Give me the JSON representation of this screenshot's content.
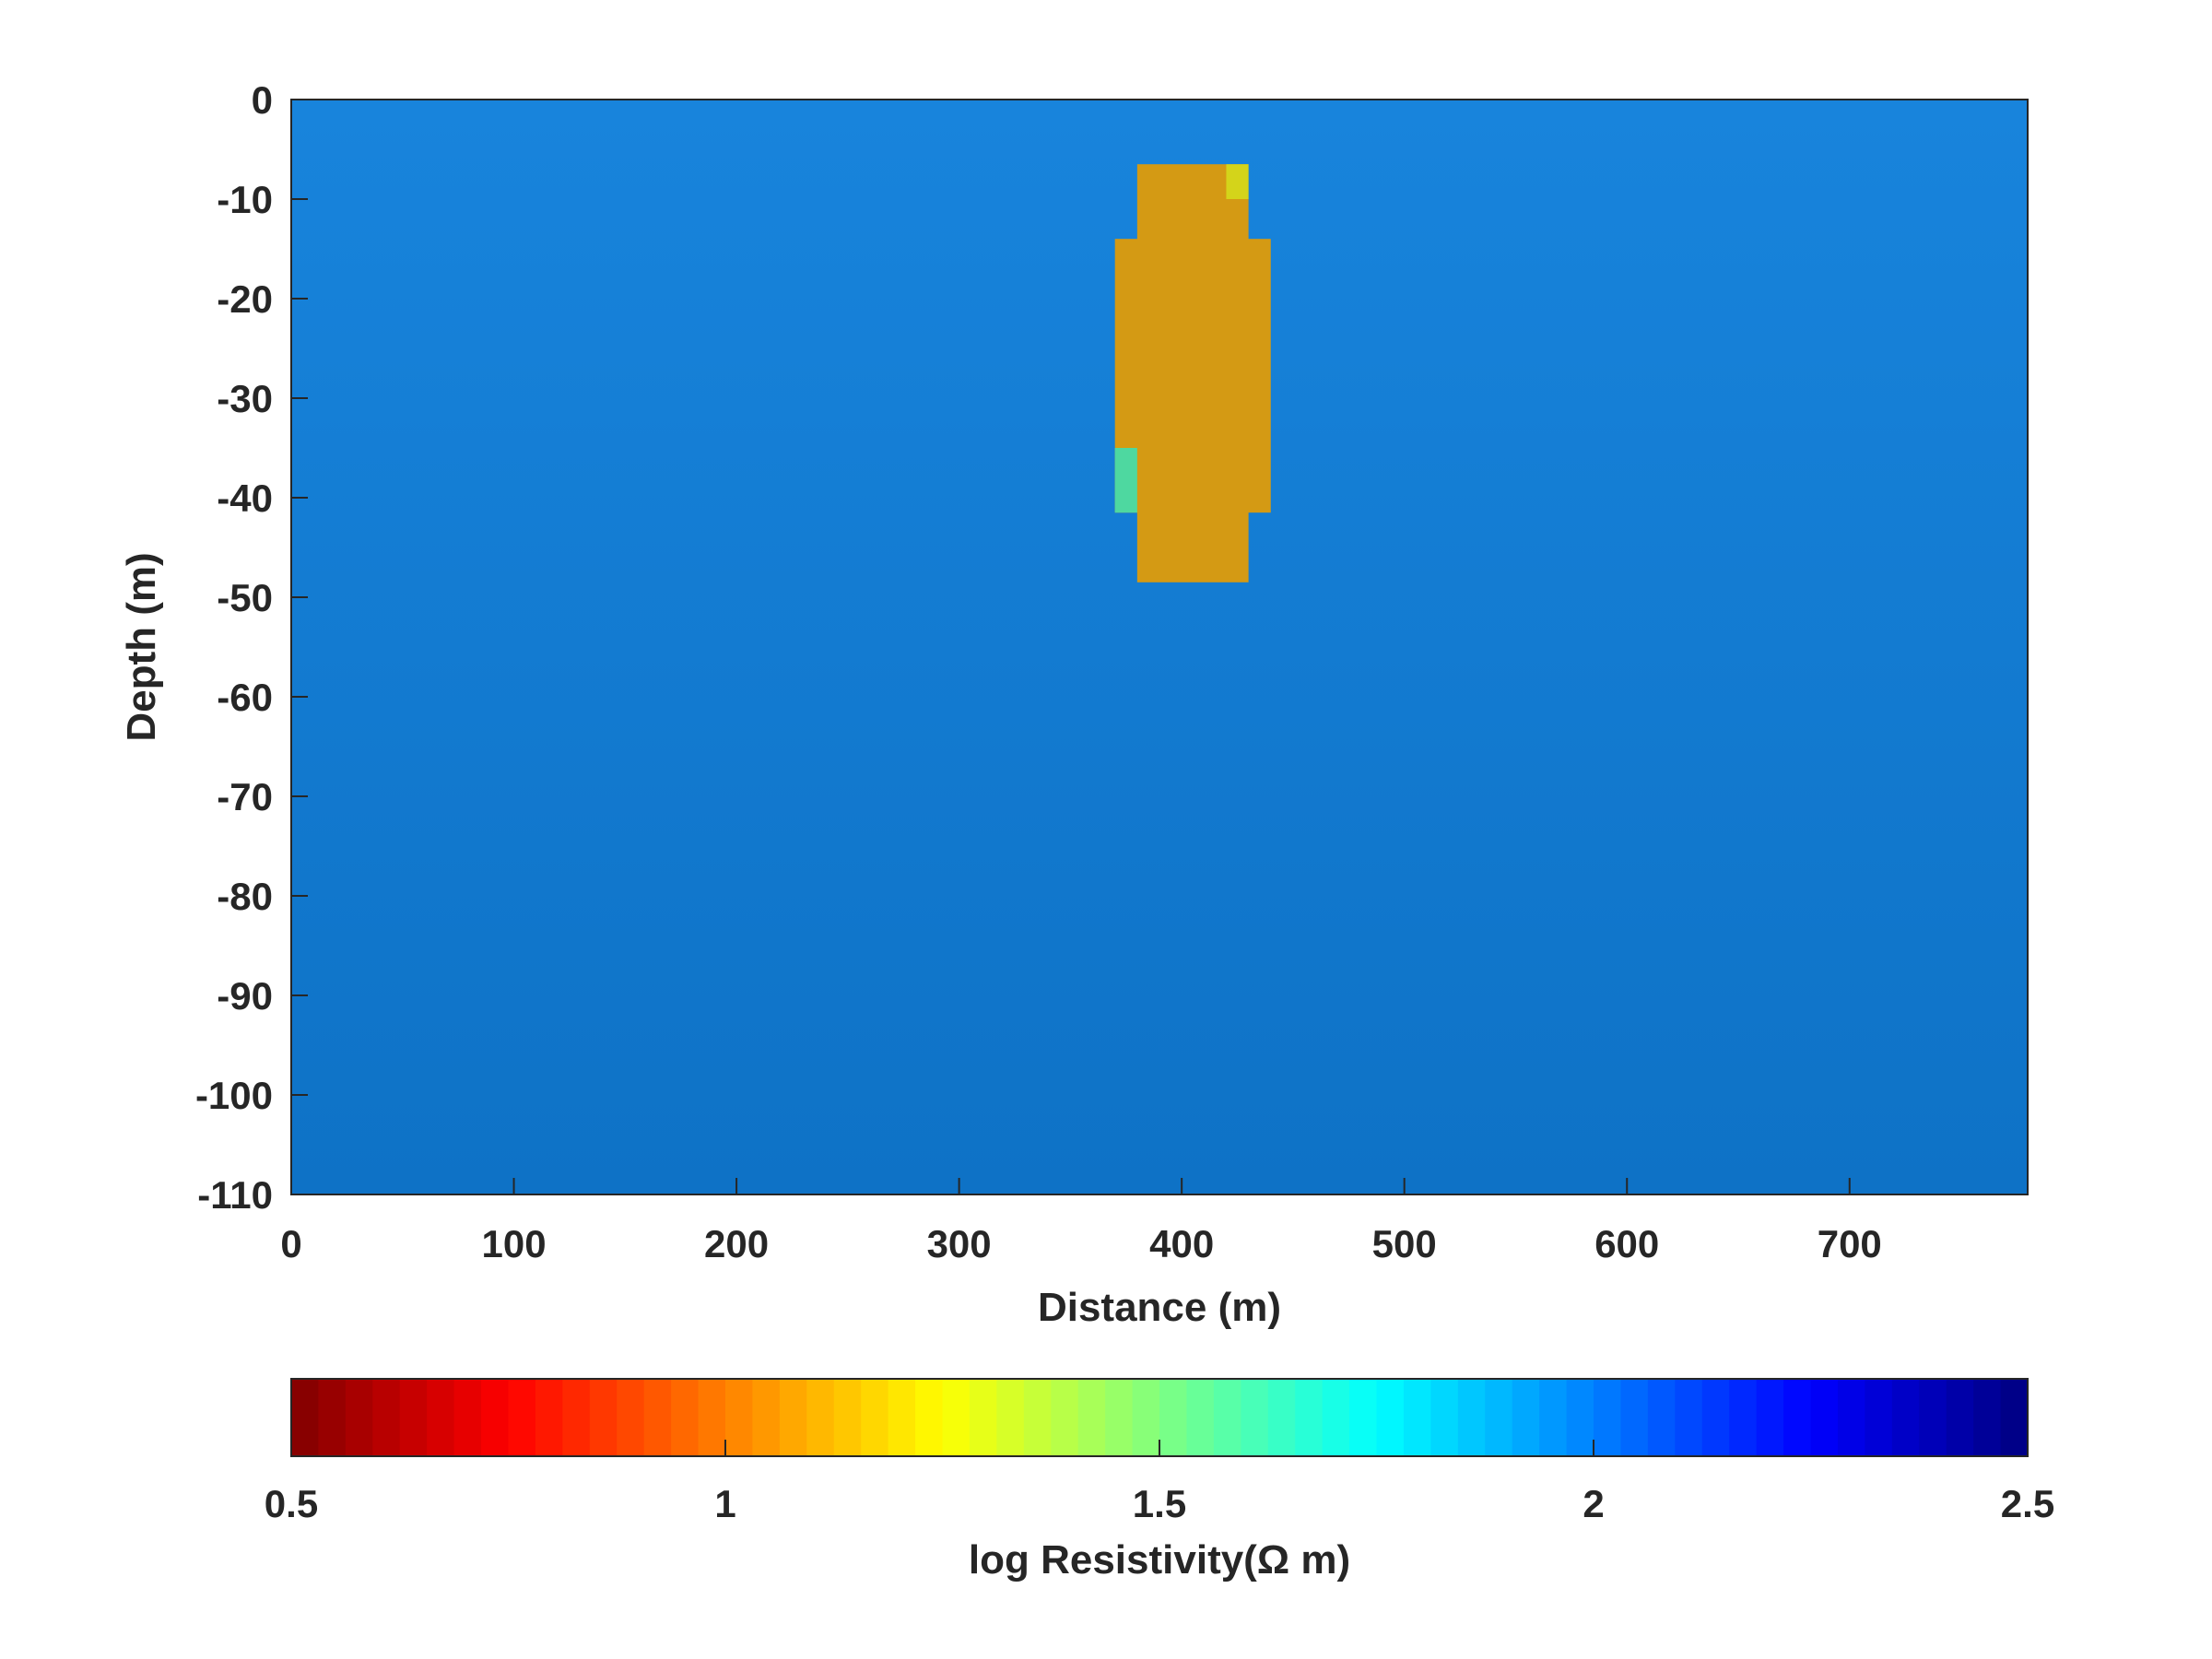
{
  "chart_data": {
    "type": "heatmap",
    "xlabel": "Distance (m)",
    "ylabel": "Depth (m)",
    "xlim": [
      0,
      780
    ],
    "ylim": [
      -110,
      0
    ],
    "x_ticks": [
      0,
      100,
      200,
      300,
      400,
      500,
      600,
      700
    ],
    "y_ticks": [
      0,
      -10,
      -20,
      -30,
      -40,
      -50,
      -60,
      -70,
      -80,
      -90,
      -100,
      -110
    ],
    "value_label": "log Resistivity",
    "background_value": 2.0,
    "background_colors": [
      "#1884dc",
      "#0e72c6"
    ],
    "cells": [
      {
        "x0": 380,
        "x1": 430,
        "y0": -6.5,
        "y1": -48.5,
        "value": 1.15,
        "color": "#d49a14"
      },
      {
        "x0": 370,
        "x1": 440,
        "y0": -14,
        "y1": -41.5,
        "value": 1.15,
        "color": "#d49a14"
      },
      {
        "x0": 420,
        "x1": 430,
        "y0": -6.5,
        "y1": -10,
        "value": 1.3,
        "color": "#d4d41a"
      },
      {
        "x0": 370,
        "x1": 380,
        "y0": -35,
        "y1": -41.5,
        "value": 1.6,
        "color": "#4ed8a0"
      }
    ],
    "colorbar": {
      "label": "log Resistivity(Ω m)",
      "range": [
        0.5,
        2.5
      ],
      "ticks": [
        "0.5",
        "1",
        "1.5",
        "2",
        "2.5"
      ],
      "levels": 64,
      "colormap": "flipped jet",
      "colors": [
        "#800000",
        "#ff0000",
        "#ff8000",
        "#ffff00",
        "#80ff80",
        "#00ffff",
        "#0080ff",
        "#0000ff",
        "#000080"
      ]
    }
  }
}
